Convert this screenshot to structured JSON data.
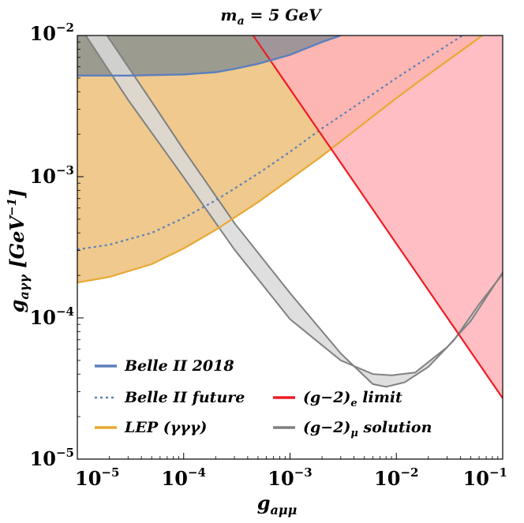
{
  "chart_data": {
    "type": "area",
    "title": "m_a = 5 GeV",
    "xlabel": "g_aμμ",
    "ylabel": "g_aγγ [GeV^-1]",
    "x_scale": "log",
    "y_scale": "log",
    "xlim": [
      1e-05,
      0.1
    ],
    "ylim": [
      1e-05,
      0.01
    ],
    "x_ticks": [
      {
        "base": "10",
        "exp": "−5",
        "value": 1e-05
      },
      {
        "base": "10",
        "exp": "−4",
        "value": 0.0001
      },
      {
        "base": "10",
        "exp": "−3",
        "value": 0.001
      },
      {
        "base": "10",
        "exp": "−2",
        "value": 0.01
      },
      {
        "base": "10",
        "exp": "−1",
        "value": 0.1
      }
    ],
    "y_ticks": [
      {
        "base": "10",
        "exp": "−5",
        "value": 1e-05
      },
      {
        "base": "10",
        "exp": "−4",
        "value": 0.0001
      },
      {
        "base": "10",
        "exp": "−3",
        "value": 0.001
      },
      {
        "base": "10",
        "exp": "−2",
        "value": 0.01
      }
    ],
    "grid": false,
    "legend_position": "bottom-left",
    "series": [
      {
        "name": "Belle II 2018",
        "style": "solid",
        "color": "#5b7fbd",
        "fill": "#808b92",
        "points": [
          [
            1e-05,
            0.0052
          ],
          [
            3e-05,
            0.0052
          ],
          [
            0.0001,
            0.0053
          ],
          [
            0.0002,
            0.0055
          ],
          [
            0.0003,
            0.0058
          ],
          [
            0.0005,
            0.0063
          ],
          [
            0.001,
            0.0073
          ],
          [
            0.002,
            0.009
          ],
          [
            0.003,
            0.01
          ]
        ]
      },
      {
        "name": "Belle II future",
        "style": "dotted",
        "color": "#5b7fbd",
        "points": [
          [
            1e-05,
            0.000305
          ],
          [
            2e-05,
            0.00033
          ],
          [
            5e-05,
            0.0004
          ],
          [
            0.0001,
            0.00051
          ],
          [
            0.0002,
            0.00068
          ],
          [
            0.0005,
            0.00105
          ],
          [
            0.001,
            0.0015
          ],
          [
            0.002,
            0.0022
          ],
          [
            0.005,
            0.0035
          ],
          [
            0.01,
            0.005
          ],
          [
            0.02,
            0.007
          ],
          [
            0.042,
            0.01
          ]
        ]
      },
      {
        "name": "LEP (γγγ)",
        "style": "solid",
        "color": "#e8a832",
        "fill": "#ecc079",
        "points": [
          [
            1e-05,
            0.000178
          ],
          [
            2e-05,
            0.000195
          ],
          [
            5e-05,
            0.00024
          ],
          [
            0.0001,
            0.00031
          ],
          [
            0.0002,
            0.00042
          ],
          [
            0.0005,
            0.00066
          ],
          [
            0.001,
            0.00096
          ],
          [
            0.002,
            0.0014
          ],
          [
            0.005,
            0.0024
          ],
          [
            0.01,
            0.0036
          ],
          [
            0.02,
            0.0053
          ],
          [
            0.05,
            0.0087
          ],
          [
            0.064,
            0.01
          ]
        ]
      },
      {
        "name": "(g−2)_e limit",
        "style": "solid",
        "color": "#ee1c24",
        "fill": "#ffb3b8",
        "points": [
          [
            0.00045,
            0.01
          ],
          [
            0.1,
            2.7e-05
          ]
        ]
      },
      {
        "name": "(g−2)_μ solution",
        "style": "band",
        "color": "#808080",
        "fill": "#d9d9d9",
        "upper": [
          [
            1.2e-05,
            0.01
          ],
          [
            3e-05,
            0.0035
          ],
          [
            0.0001,
            0.00099
          ],
          [
            0.0003,
            0.000305
          ],
          [
            0.001,
            9.8e-05
          ],
          [
            0.003,
            5e-05
          ],
          [
            0.006,
            4e-05
          ],
          [
            0.009,
            3.92e-05
          ],
          [
            0.015,
            4.1e-05
          ],
          [
            0.03,
            6.2e-05
          ],
          [
            0.05,
            9.5e-05
          ],
          [
            0.1,
            0.00021
          ]
        ],
        "lower": [
          [
            1.9e-05,
            0.01
          ],
          [
            5e-05,
            0.0034
          ],
          [
            0.0001,
            0.00155
          ],
          [
            0.0003,
            0.00047
          ],
          [
            0.001,
            0.00015
          ],
          [
            0.003,
            5.6e-05
          ],
          [
            0.006,
            3.4e-05
          ],
          [
            0.008,
            3.25e-05
          ],
          [
            0.012,
            3.5e-05
          ],
          [
            0.02,
            4.5e-05
          ],
          [
            0.035,
            7e-05
          ],
          [
            0.06,
            0.000125
          ],
          [
            0.1,
            0.000205
          ]
        ]
      }
    ],
    "legend": [
      {
        "label": "Belle II 2018",
        "series": 0
      },
      {
        "label": "Belle II future",
        "series": 1
      },
      {
        "label": "(g−2)_e limit",
        "series": 3
      },
      {
        "label": "LEP (γγγ)",
        "series": 2
      },
      {
        "label": "(g−2)_μ solution",
        "series": 4
      }
    ]
  }
}
